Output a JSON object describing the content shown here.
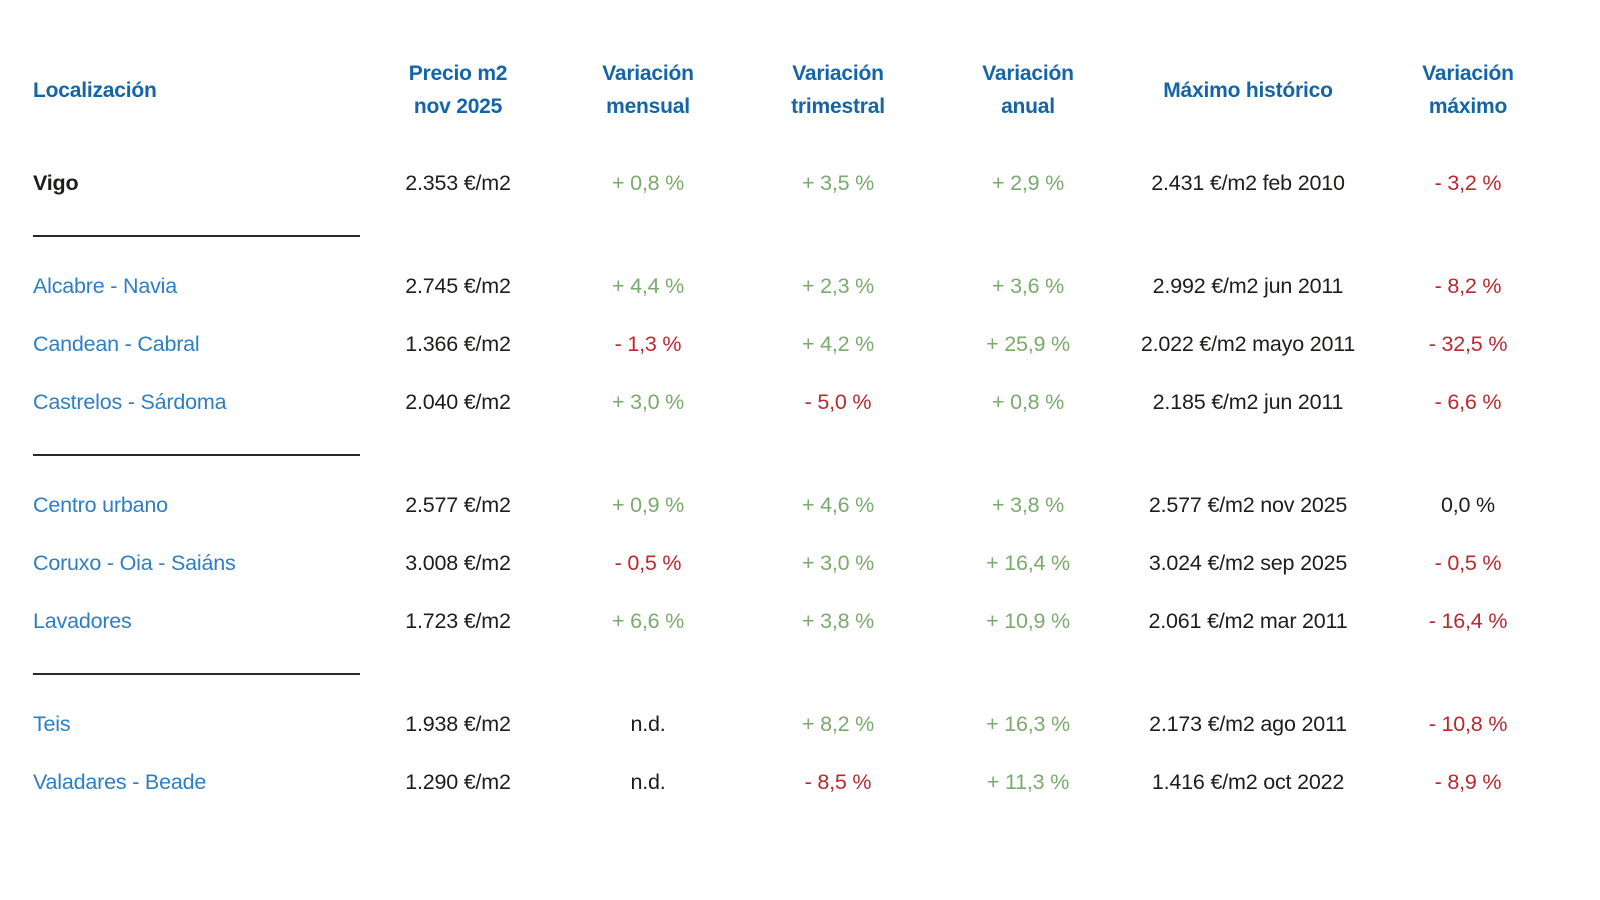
{
  "colors": {
    "header_blue": "#1464a8",
    "link_blue": "#2d7ec2",
    "positive_green": "#7baa6d",
    "negative_red": "#b9292f",
    "text_dark": "#1d1d1b"
  },
  "header": {
    "col_localizacion": "Localización",
    "col_precio_l1": "Precio m2",
    "col_precio_l2": "nov 2025",
    "col_mensual_l1": "Variación",
    "col_mensual_l2": "mensual",
    "col_trimestral_l1": "Variación",
    "col_trimestral_l2": "trimestral",
    "col_anual_l1": "Variación",
    "col_anual_l2": "anual",
    "col_maximo": "Máximo histórico",
    "col_var_maximo_l1": "Variación",
    "col_var_maximo_l2": "máximo"
  },
  "groups": [
    {
      "rows": [
        {
          "location": "Vigo",
          "emphasis": "bold",
          "price": "2.353 €/m2",
          "monthly": "+ 0,8 %",
          "monthly_trend": "positive",
          "quarterly": "+ 3,5 %",
          "quarterly_trend": "positive",
          "annual": "+ 2,9 %",
          "annual_trend": "positive",
          "max": "2.431 €/m2 feb 2010",
          "var_max": "- 3,2 %",
          "var_max_trend": "negative"
        }
      ]
    },
    {
      "rows": [
        {
          "location": "Alcabre - Navia",
          "emphasis": "normal",
          "price": "2.745 €/m2",
          "monthly": "+ 4,4 %",
          "monthly_trend": "positive",
          "quarterly": "+ 2,3 %",
          "quarterly_trend": "positive",
          "annual": "+ 3,6 %",
          "annual_trend": "positive",
          "max": "2.992 €/m2 jun 2011",
          "var_max": "- 8,2 %",
          "var_max_trend": "negative"
        },
        {
          "location": "Candean - Cabral",
          "emphasis": "normal",
          "price": "1.366 €/m2",
          "monthly": "- 1,3 %",
          "monthly_trend": "negative",
          "quarterly": "+ 4,2 %",
          "quarterly_trend": "positive",
          "annual": "+ 25,9 %",
          "annual_trend": "positive",
          "max": "2.022 €/m2 mayo 2011",
          "var_max": "- 32,5 %",
          "var_max_trend": "negative"
        },
        {
          "location": "Castrelos - Sárdoma",
          "emphasis": "normal",
          "price": "2.040 €/m2",
          "monthly": "+ 3,0 %",
          "monthly_trend": "positive",
          "quarterly": "- 5,0 %",
          "quarterly_trend": "negative",
          "annual": "+ 0,8 %",
          "annual_trend": "positive",
          "max": "2.185 €/m2 jun 2011",
          "var_max": "- 6,6 %",
          "var_max_trend": "negative"
        }
      ]
    },
    {
      "rows": [
        {
          "location": "Centro urbano",
          "emphasis": "normal",
          "price": "2.577 €/m2",
          "monthly": "+ 0,9 %",
          "monthly_trend": "positive",
          "quarterly": "+ 4,6 %",
          "quarterly_trend": "positive",
          "annual": "+ 3,8 %",
          "annual_trend": "positive",
          "max": "2.577 €/m2 nov 2025",
          "var_max": "0,0 %",
          "var_max_trend": "neutral"
        },
        {
          "location": "Coruxo - Oia - Saiáns",
          "emphasis": "normal",
          "price": "3.008 €/m2",
          "monthly": "- 0,5 %",
          "monthly_trend": "negative",
          "quarterly": "+ 3,0 %",
          "quarterly_trend": "positive",
          "annual": "+ 16,4 %",
          "annual_trend": "positive",
          "max": "3.024 €/m2 sep 2025",
          "var_max": "- 0,5 %",
          "var_max_trend": "negative"
        },
        {
          "location": "Lavadores",
          "emphasis": "normal",
          "price": "1.723 €/m2",
          "monthly": "+ 6,6 %",
          "monthly_trend": "positive",
          "quarterly": "+ 3,8 %",
          "quarterly_trend": "positive",
          "annual": "+ 10,9 %",
          "annual_trend": "positive",
          "max": "2.061 €/m2 mar 2011",
          "var_max": "- 16,4 %",
          "var_max_trend": "negative"
        }
      ]
    },
    {
      "rows": [
        {
          "location": "Teis",
          "emphasis": "normal",
          "price": "1.938 €/m2",
          "monthly": "n.d.",
          "monthly_trend": "neutral",
          "quarterly": "+ 8,2 %",
          "quarterly_trend": "positive",
          "annual": "+ 16,3 %",
          "annual_trend": "positive",
          "max": "2.173 €/m2 ago 2011",
          "var_max": "- 10,8 %",
          "var_max_trend": "negative"
        },
        {
          "location": "Valadares - Beade",
          "emphasis": "normal",
          "price": "1.290 €/m2",
          "monthly": "n.d.",
          "monthly_trend": "neutral",
          "quarterly": "- 8,5 %",
          "quarterly_trend": "negative",
          "annual": "+ 11,3 %",
          "annual_trend": "positive",
          "max": "1.416 €/m2 oct 2022",
          "var_max": "- 8,9 %",
          "var_max_trend": "negative"
        }
      ]
    }
  ]
}
